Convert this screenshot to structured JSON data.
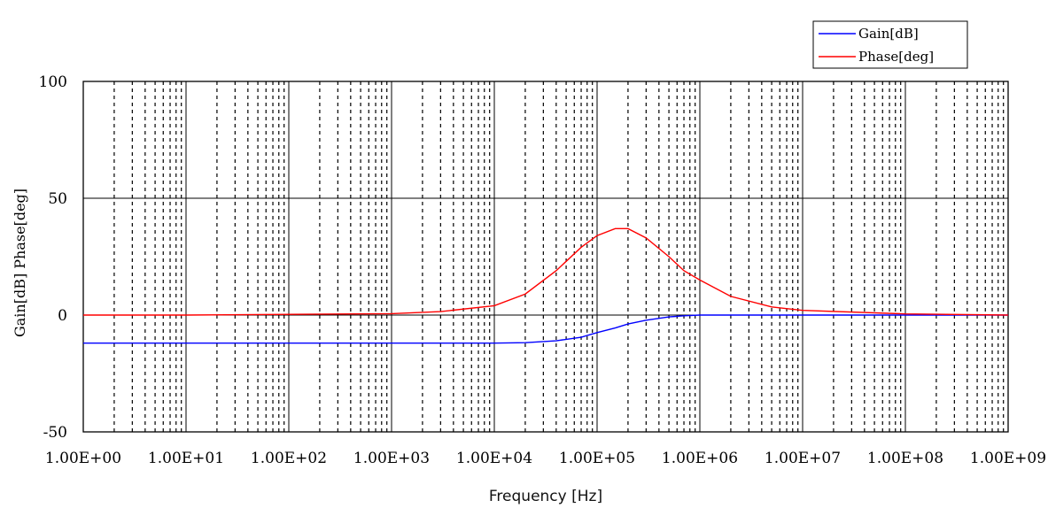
{
  "chart_data": {
    "type": "line",
    "title": "",
    "xlabel": "Frequency [Hz]",
    "ylabel": "Gain[dB] Phase[deg]",
    "x_scale": "log",
    "xlim": [
      1,
      1000000000
    ],
    "ylim": [
      -50,
      100
    ],
    "x_tick_labels": [
      "1.00E+00",
      "1.00E+01",
      "1.00E+02",
      "1.00E+03",
      "1.00E+04",
      "1.00E+05",
      "1.00E+06",
      "1.00E+07",
      "1.00E+08",
      "1.00E+09"
    ],
    "y_tick_labels": [
      "-50",
      "0",
      "50",
      "100"
    ],
    "grid": "on",
    "legend_position": "top-right",
    "series": [
      {
        "name": "Gain[dB]",
        "color": "#0000ff",
        "x": [
          1,
          10,
          100,
          1000,
          3000,
          10000,
          20000,
          40000,
          70000,
          100000,
          150000,
          200000,
          300000,
          500000,
          700000,
          1000000,
          10000000,
          1000000000
        ],
        "y": [
          -12,
          -12,
          -12,
          -12,
          -12,
          -12,
          -11.8,
          -11,
          -9.5,
          -7.5,
          -5.5,
          -3.8,
          -2.2,
          -0.8,
          -0.3,
          0,
          0,
          0
        ]
      },
      {
        "name": "Phase[deg]",
        "color": "#ff0000",
        "x": [
          1,
          10,
          100,
          1000,
          3000,
          10000,
          20000,
          40000,
          70000,
          100000,
          150000,
          200000,
          300000,
          500000,
          700000,
          1000000,
          2000000,
          5000000,
          10000000,
          100000000,
          1000000000
        ],
        "y": [
          0,
          0,
          0.3,
          0.6,
          1.5,
          4,
          9,
          19,
          29,
          34,
          37,
          37,
          33,
          25,
          19,
          15,
          8,
          3.5,
          2,
          0.5,
          0
        ]
      }
    ]
  }
}
